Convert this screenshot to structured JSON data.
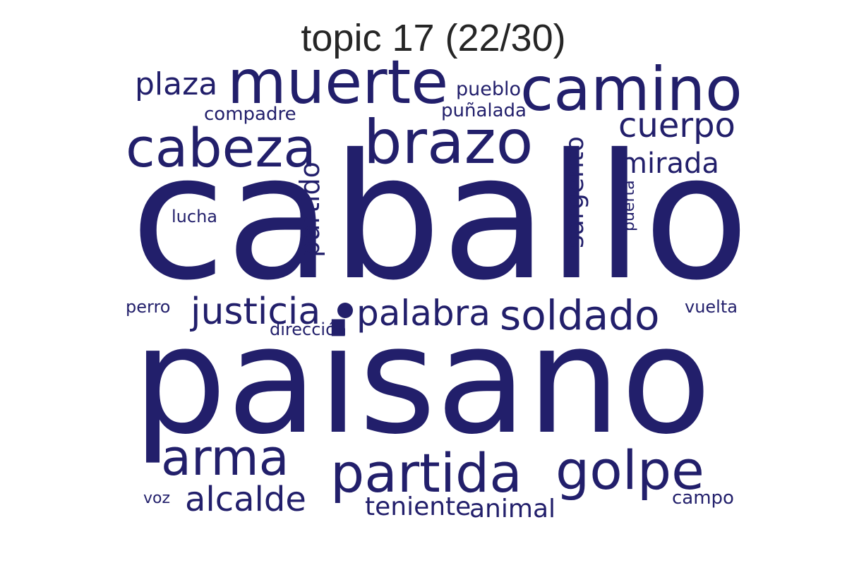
{
  "title": "topic 17 (22/30)",
  "colors": {
    "word": "#221f6b",
    "title": "#262626",
    "background": "#ffffff"
  },
  "words": [
    {
      "text": "caballo"
    },
    {
      "text": "paisano"
    },
    {
      "text": "muerte"
    },
    {
      "text": "camino"
    },
    {
      "text": "brazo"
    },
    {
      "text": "cabeza"
    },
    {
      "text": "plaza"
    },
    {
      "text": "pueblo"
    },
    {
      "text": "compadre"
    },
    {
      "text": "puñalada"
    },
    {
      "text": "cuerpo"
    },
    {
      "text": "mirada"
    },
    {
      "text": "sargento"
    },
    {
      "text": "puerta"
    },
    {
      "text": "partido"
    },
    {
      "text": "lucha"
    },
    {
      "text": "perro"
    },
    {
      "text": "justicia"
    },
    {
      "text": "palabra"
    },
    {
      "text": "soldado"
    },
    {
      "text": "vuelta"
    },
    {
      "text": "dirección"
    },
    {
      "text": "arma"
    },
    {
      "text": "partida"
    },
    {
      "text": "golpe"
    },
    {
      "text": "voz"
    },
    {
      "text": "alcalde"
    },
    {
      "text": "teniente"
    },
    {
      "text": "animal"
    },
    {
      "text": "campo"
    }
  ]
}
